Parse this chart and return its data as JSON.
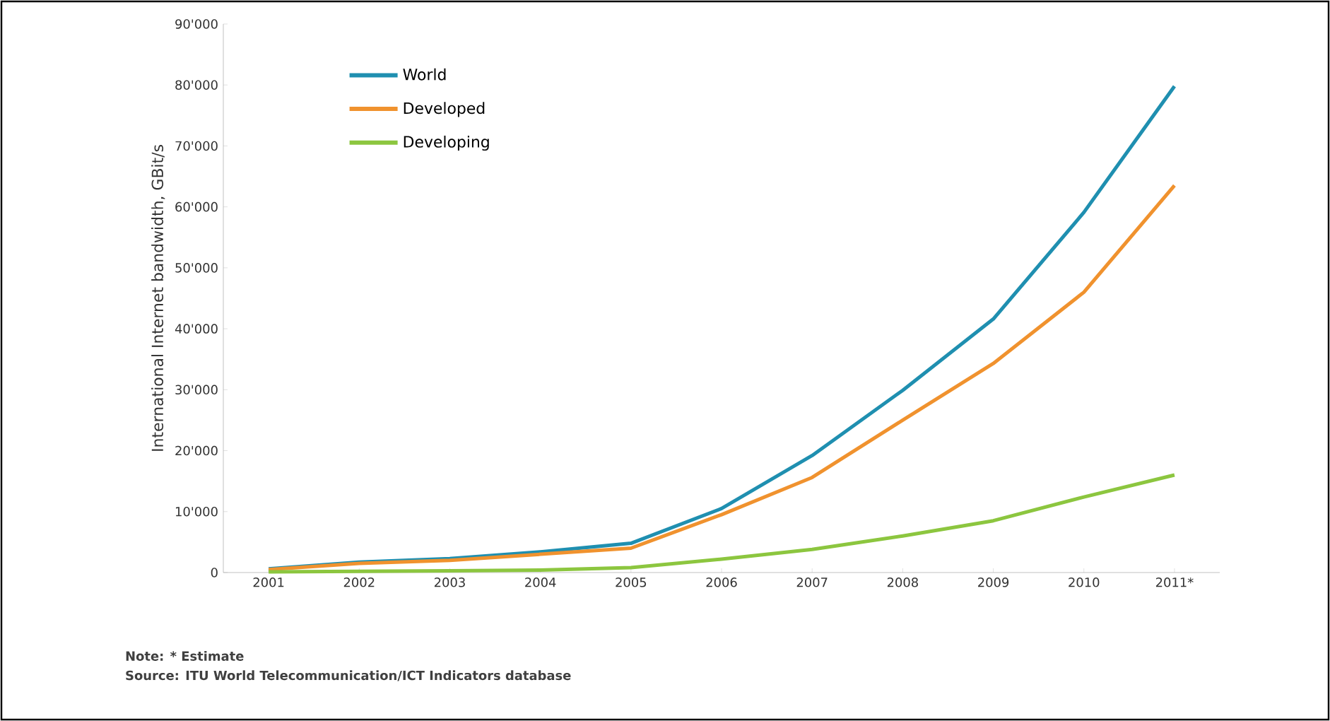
{
  "chart_data": {
    "type": "line",
    "ylabel": "International Internet bandwidth, GBit/s",
    "categories": [
      "2001",
      "2002",
      "2003",
      "2004",
      "2005",
      "2006",
      "2007",
      "2008",
      "2009",
      "2010",
      "2011*"
    ],
    "series": [
      {
        "name": "World",
        "color": "#1f8fb0",
        "values": [
          600,
          1700,
          2300,
          3400,
          4800,
          10500,
          19200,
          29900,
          41600,
          59100,
          79800
        ]
      },
      {
        "name": "Developed",
        "color": "#f0922e",
        "values": [
          500,
          1500,
          2000,
          3000,
          4000,
          9500,
          15600,
          25000,
          34300,
          46000,
          63500
        ]
      },
      {
        "name": "Developing",
        "color": "#8cc63f",
        "values": [
          100,
          200,
          300,
          400,
          800,
          2200,
          3800,
          6000,
          8500,
          12400,
          16000
        ]
      }
    ],
    "ylim": [
      0,
      90000
    ],
    "yticks": [
      0,
      {
        "value": 10000,
        "label": "10'000"
      },
      {
        "value": 20000,
        "label": "20'000"
      },
      {
        "value": 30000,
        "label": "30'000"
      },
      {
        "value": 40000,
        "label": "40'000"
      },
      {
        "value": 50000,
        "label": "50'000"
      },
      {
        "value": 60000,
        "label": "60'000"
      },
      {
        "value": 70000,
        "label": "70'000"
      },
      {
        "value": 80000,
        "label": "80'000"
      },
      {
        "value": 90000,
        "label": "90'000"
      }
    ],
    "grid": false,
    "legend": "top left",
    "marker": "none",
    "line_style": "solid",
    "annotations": [
      "Note: * Estimate",
      "Source: ITU World Telecommunication/ICT Indicators database"
    ]
  }
}
